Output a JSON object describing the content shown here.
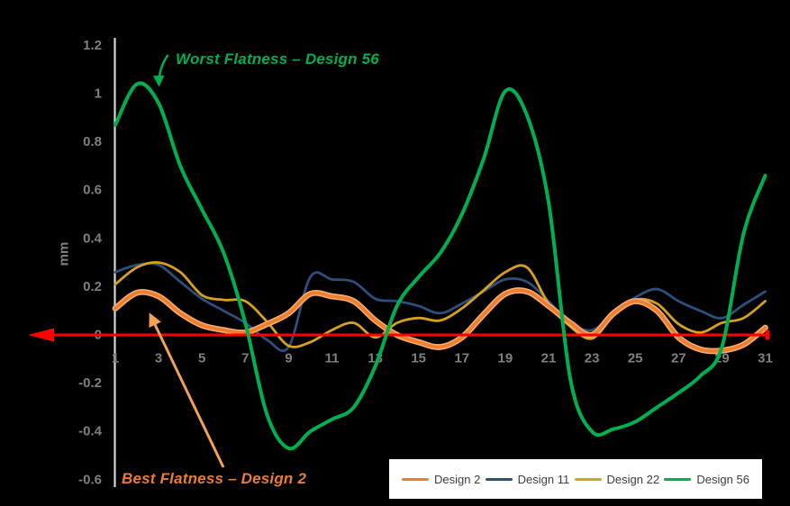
{
  "figure": {
    "background": "#000000",
    "axis_line_color": "#D6D6D6",
    "tick_label_color": "#7F7F7F",
    "zero_line_color": "#FF0000"
  },
  "chart_data": {
    "type": "line",
    "title": "",
    "xlabel": "",
    "ylabel": "mm",
    "xlim": [
      1,
      31
    ],
    "ylim": [
      -0.6,
      1.2
    ],
    "grid": false,
    "legend_position": "bottom-right",
    "xticks": [
      "1",
      "3",
      "5",
      "7",
      "9",
      "11",
      "13",
      "15",
      "17",
      "19",
      "21",
      "23",
      "25",
      "27",
      "29",
      "31"
    ],
    "yticks": [
      "1.2",
      "1",
      "0.8",
      "0.6",
      "0.4",
      "0.2",
      "0",
      "-0.2",
      "-0.4",
      "-0.6"
    ],
    "x": [
      1,
      2,
      3,
      4,
      5,
      6,
      7,
      8,
      9,
      10,
      11,
      12,
      13,
      14,
      15,
      16,
      17,
      18,
      19,
      20,
      21,
      22,
      23,
      24,
      25,
      26,
      27,
      28,
      29,
      30,
      31
    ],
    "series": [
      {
        "name": "Design 2",
        "color": "#ED7D31",
        "halo": "#F6AA6A",
        "width": 3.5,
        "values": [
          0.11,
          0.175,
          0.16,
          0.09,
          0.04,
          0.02,
          0.01,
          0.045,
          0.09,
          0.17,
          0.16,
          0.14,
          0.06,
          0.0,
          -0.03,
          -0.05,
          -0.01,
          0.085,
          0.17,
          0.18,
          0.12,
          0.05,
          0.0,
          0.09,
          0.14,
          0.1,
          -0.01,
          -0.06,
          -0.065,
          -0.04,
          0.03
        ]
      },
      {
        "name": "Design 11",
        "color": "#2E4E7E",
        "width": 2.8,
        "values": [
          0.26,
          0.29,
          0.29,
          0.22,
          0.15,
          0.1,
          0.05,
          -0.02,
          -0.05,
          0.24,
          0.23,
          0.22,
          0.15,
          0.14,
          0.12,
          0.09,
          0.13,
          0.18,
          0.23,
          0.22,
          0.14,
          0.05,
          0.02,
          0.09,
          0.155,
          0.19,
          0.14,
          0.1,
          0.07,
          0.125,
          0.18
        ]
      },
      {
        "name": "Design 22",
        "color": "#D7A01F",
        "width": 2.8,
        "values": [
          0.21,
          0.28,
          0.3,
          0.26,
          0.165,
          0.145,
          0.14,
          0.055,
          -0.045,
          -0.03,
          0.02,
          0.05,
          -0.01,
          0.05,
          0.07,
          0.06,
          0.11,
          0.185,
          0.26,
          0.28,
          0.13,
          0.035,
          -0.015,
          0.08,
          0.145,
          0.13,
          0.045,
          0.01,
          0.05,
          0.07,
          0.14
        ]
      },
      {
        "name": "Design 56",
        "color": "#00B050",
        "width": 4,
        "values": [
          0.87,
          1.04,
          0.96,
          0.7,
          0.52,
          0.34,
          0.05,
          -0.33,
          -0.47,
          -0.4,
          -0.35,
          -0.3,
          -0.13,
          0.12,
          0.24,
          0.34,
          0.5,
          0.73,
          1.01,
          0.91,
          0.55,
          -0.18,
          -0.4,
          -0.39,
          -0.36,
          -0.3,
          -0.24,
          -0.17,
          -0.05,
          0.42,
          0.66
        ]
      }
    ]
  },
  "annotations": {
    "worst": {
      "text": "Worst Flatness – Design 56",
      "color": "#00B050",
      "arrow_color": "#00B050"
    },
    "best": {
      "text": "Best Flatness – Design 2",
      "color": "#ED7D31",
      "arrow_color": "#F4A158"
    }
  },
  "legend": {
    "items": [
      "Design 2",
      "Design 11",
      "Design 22",
      "Design 56"
    ]
  }
}
